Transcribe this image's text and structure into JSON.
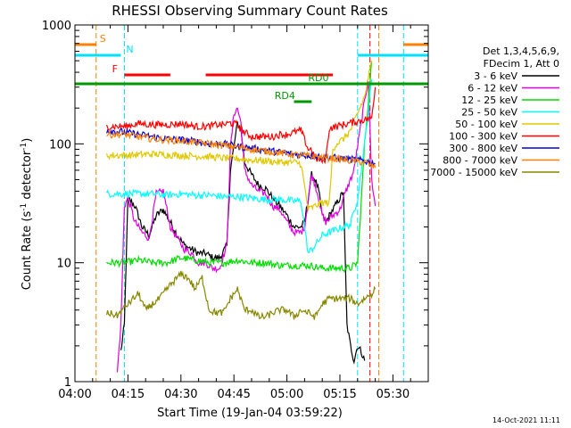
{
  "chart_data": {
    "type": "line",
    "title": "RHESSI Observing Summary Count Rates",
    "xlabel": "Start Time (19-Jan-04 03:59:22)",
    "ylabel_main": "Count Rate (s",
    "ylabel_sup1": "-1",
    "ylabel_mid": " detector",
    "ylabel_sup2": "-1",
    "ylabel_end": ")",
    "yscale": "log",
    "ylim": [
      1,
      1000
    ],
    "xlim_minutes": [
      0,
      100
    ],
    "x_ticks": [
      {
        "label": "04:00",
        "min": 0
      },
      {
        "label": "04:15",
        "min": 15
      },
      {
        "label": "04:30",
        "min": 30
      },
      {
        "label": "04:45",
        "min": 45
      },
      {
        "label": "05:00",
        "min": 60
      },
      {
        "label": "05:15",
        "min": 75
      },
      {
        "label": "05:30",
        "min": 90
      }
    ],
    "y_ticks": [
      {
        "label": "1",
        "v": 1
      },
      {
        "label": "10",
        "v": 10
      },
      {
        "label": "100",
        "v": 100
      },
      {
        "label": "1000",
        "v": 1000
      }
    ],
    "legend_header": [
      "Det 1,3,4,5,6,9,",
      "FDecim 1, Att 0"
    ],
    "series": [
      {
        "name": "3 - 6 keV",
        "color": "#000000",
        "points": [
          [
            13,
            1.8
          ],
          [
            14,
            3
          ],
          [
            15,
            35
          ],
          [
            17,
            30
          ],
          [
            19,
            20
          ],
          [
            21,
            17
          ],
          [
            23,
            25
          ],
          [
            25,
            28
          ],
          [
            27,
            22
          ],
          [
            29,
            17
          ],
          [
            31,
            14
          ],
          [
            33,
            13
          ],
          [
            35,
            12
          ],
          [
            37,
            12
          ],
          [
            39,
            11
          ],
          [
            41,
            11
          ],
          [
            43,
            14
          ],
          [
            44,
            60
          ],
          [
            46,
            150
          ],
          [
            47,
            130
          ],
          [
            48,
            70
          ],
          [
            50,
            55
          ],
          [
            52,
            45
          ],
          [
            54,
            42
          ],
          [
            56,
            35
          ],
          [
            58,
            30
          ],
          [
            60,
            25
          ],
          [
            62,
            20
          ],
          [
            64,
            20
          ],
          [
            65,
            22
          ],
          [
            67,
            55
          ],
          [
            68,
            50
          ],
          [
            69,
            40
          ],
          [
            70,
            25
          ],
          [
            71,
            22
          ],
          [
            73,
            28
          ],
          [
            75,
            35
          ],
          [
            76,
            40
          ],
          [
            77,
            3
          ],
          [
            78,
            2
          ],
          [
            79,
            1.5
          ],
          [
            80,
            2
          ],
          [
            81,
            1.8
          ],
          [
            82,
            1.5
          ]
        ]
      },
      {
        "name": "6 - 12 keV",
        "color": "#e000e0",
        "points": [
          [
            12,
            1.2
          ],
          [
            13,
            3
          ],
          [
            14,
            30
          ],
          [
            15,
            35
          ],
          [
            17,
            22
          ],
          [
            19,
            18
          ],
          [
            21,
            16
          ],
          [
            23,
            38
          ],
          [
            25,
            40
          ],
          [
            27,
            20
          ],
          [
            29,
            16
          ],
          [
            31,
            13
          ],
          [
            33,
            12
          ],
          [
            35,
            10
          ],
          [
            37,
            10
          ],
          [
            39,
            9
          ],
          [
            41,
            9
          ],
          [
            43,
            14
          ],
          [
            44,
            90
          ],
          [
            45,
            180
          ],
          [
            46,
            200
          ],
          [
            47,
            150
          ],
          [
            48,
            60
          ],
          [
            50,
            45
          ],
          [
            52,
            40
          ],
          [
            54,
            38
          ],
          [
            56,
            30
          ],
          [
            58,
            28
          ],
          [
            60,
            22
          ],
          [
            62,
            18
          ],
          [
            64,
            18
          ],
          [
            65,
            20
          ],
          [
            67,
            55
          ],
          [
            68,
            45
          ],
          [
            69,
            35
          ],
          [
            70,
            25
          ],
          [
            71,
            22
          ],
          [
            73,
            25
          ],
          [
            75,
            28
          ],
          [
            76,
            35
          ],
          [
            79,
            60
          ],
          [
            81,
            150
          ],
          [
            83,
            350
          ],
          [
            84,
            50
          ],
          [
            85,
            30
          ]
        ]
      },
      {
        "name": "12 - 25 keV",
        "color": "#00dd00",
        "points": [
          [
            9,
            10
          ],
          [
            14,
            10
          ],
          [
            18,
            10.5
          ],
          [
            22,
            10
          ],
          [
            26,
            10
          ],
          [
            30,
            11
          ],
          [
            34,
            10.5
          ],
          [
            38,
            10
          ],
          [
            42,
            10
          ],
          [
            46,
            10.5
          ],
          [
            50,
            10
          ],
          [
            54,
            10
          ],
          [
            58,
            9.5
          ],
          [
            62,
            9.5
          ],
          [
            66,
            9.5
          ],
          [
            70,
            9
          ],
          [
            74,
            9
          ],
          [
            78,
            9
          ],
          [
            80,
            10
          ],
          [
            82,
            100
          ],
          [
            84,
            500
          ]
        ]
      },
      {
        "name": "25 - 50 keV",
        "color": "#00ffff",
        "points": [
          [
            9,
            38
          ],
          [
            14,
            38
          ],
          [
            18,
            38
          ],
          [
            22,
            38
          ],
          [
            26,
            37
          ],
          [
            30,
            38
          ],
          [
            34,
            37
          ],
          [
            38,
            37
          ],
          [
            42,
            36
          ],
          [
            46,
            36
          ],
          [
            50,
            35
          ],
          [
            54,
            34
          ],
          [
            58,
            34
          ],
          [
            62,
            33
          ],
          [
            64,
            33
          ],
          [
            66,
            12
          ],
          [
            68,
            14
          ],
          [
            70,
            17
          ],
          [
            72,
            18
          ],
          [
            74,
            19
          ],
          [
            76,
            20
          ],
          [
            78,
            21
          ],
          [
            80,
            35
          ],
          [
            82,
            100
          ],
          [
            84,
            350
          ]
        ]
      },
      {
        "name": "50 - 100 keV",
        "color": "#e0c800",
        "points": [
          [
            9,
            80
          ],
          [
            14,
            80
          ],
          [
            18,
            81
          ],
          [
            22,
            82
          ],
          [
            26,
            81
          ],
          [
            30,
            80
          ],
          [
            34,
            79
          ],
          [
            38,
            78
          ],
          [
            42,
            76
          ],
          [
            46,
            75
          ],
          [
            50,
            73
          ],
          [
            54,
            72
          ],
          [
            58,
            70
          ],
          [
            62,
            70
          ],
          [
            64,
            68
          ],
          [
            66,
            28
          ],
          [
            68,
            30
          ],
          [
            70,
            32
          ],
          [
            72,
            32
          ],
          [
            73,
            90
          ],
          [
            74,
            100
          ],
          [
            76,
            110
          ],
          [
            78,
            130
          ],
          [
            80,
            180
          ],
          [
            82,
            250
          ],
          [
            84,
            500
          ]
        ]
      },
      {
        "name": "100 - 300 keV",
        "color": "#ff0000",
        "points": [
          [
            9,
            140
          ],
          [
            14,
            140
          ],
          [
            18,
            148
          ],
          [
            22,
            145
          ],
          [
            26,
            145
          ],
          [
            30,
            148
          ],
          [
            34,
            140
          ],
          [
            38,
            140
          ],
          [
            40,
            145
          ],
          [
            42,
            145
          ],
          [
            44,
            150
          ],
          [
            46,
            145
          ],
          [
            48,
            125
          ],
          [
            50,
            115
          ],
          [
            52,
            115
          ],
          [
            54,
            115
          ],
          [
            56,
            115
          ],
          [
            58,
            120
          ],
          [
            60,
            120
          ],
          [
            62,
            125
          ],
          [
            64,
            130
          ],
          [
            66,
            90
          ],
          [
            67,
            90
          ],
          [
            68,
            75
          ],
          [
            70,
            72
          ],
          [
            71,
            75
          ],
          [
            72,
            135
          ],
          [
            74,
            140
          ],
          [
            76,
            145
          ],
          [
            78,
            150
          ],
          [
            80,
            155
          ],
          [
            82,
            160
          ],
          [
            84,
            165
          ],
          [
            85,
            300
          ]
        ]
      },
      {
        "name": "300 - 800 keV",
        "color": "#0000dd",
        "points": [
          [
            9,
            130
          ],
          [
            14,
            125
          ],
          [
            18,
            120
          ],
          [
            22,
            115
          ],
          [
            26,
            110
          ],
          [
            30,
            108
          ],
          [
            34,
            105
          ],
          [
            38,
            100
          ],
          [
            42,
            100
          ],
          [
            46,
            95
          ],
          [
            50,
            92
          ],
          [
            54,
            88
          ],
          [
            58,
            85
          ],
          [
            62,
            82
          ],
          [
            66,
            80
          ],
          [
            70,
            78
          ],
          [
            74,
            76
          ],
          [
            78,
            74
          ],
          [
            82,
            72
          ],
          [
            85,
            68
          ]
        ]
      },
      {
        "name": "800 - 7000 keV",
        "color": "#ff8000",
        "points": [
          [
            9,
            120
          ],
          [
            14,
            120
          ],
          [
            18,
            115
          ],
          [
            22,
            110
          ],
          [
            26,
            108
          ],
          [
            30,
            106
          ],
          [
            34,
            103
          ],
          [
            38,
            100
          ],
          [
            42,
            97
          ],
          [
            46,
            94
          ],
          [
            50,
            90
          ],
          [
            54,
            87
          ],
          [
            58,
            84
          ],
          [
            62,
            81
          ],
          [
            66,
            79
          ],
          [
            70,
            77
          ],
          [
            74,
            75
          ],
          [
            78,
            72
          ],
          [
            82,
            70
          ],
          [
            85,
            63
          ]
        ]
      },
      {
        "name": "7000 - 15000 keV",
        "color": "#888800",
        "points": [
          [
            9,
            3.8
          ],
          [
            12,
            3.6
          ],
          [
            15,
            4.5
          ],
          [
            18,
            5.5
          ],
          [
            20,
            4
          ],
          [
            22,
            4.5
          ],
          [
            24,
            5
          ],
          [
            26,
            6
          ],
          [
            28,
            7
          ],
          [
            30,
            8
          ],
          [
            32,
            7.5
          ],
          [
            34,
            6
          ],
          [
            36,
            7.5
          ],
          [
            38,
            4
          ],
          [
            40,
            3.8
          ],
          [
            42,
            3.8
          ],
          [
            44,
            5
          ],
          [
            46,
            6
          ],
          [
            48,
            4
          ],
          [
            50,
            4
          ],
          [
            52,
            3.5
          ],
          [
            54,
            3.5
          ],
          [
            56,
            3.8
          ],
          [
            58,
            4
          ],
          [
            60,
            4
          ],
          [
            62,
            3.5
          ],
          [
            64,
            4
          ],
          [
            66,
            3.8
          ],
          [
            68,
            3.5
          ],
          [
            70,
            4.5
          ],
          [
            72,
            5
          ],
          [
            74,
            5
          ],
          [
            76,
            5
          ],
          [
            78,
            5
          ],
          [
            80,
            4.5
          ],
          [
            82,
            5
          ],
          [
            84,
            5.5
          ],
          [
            85,
            6
          ]
        ]
      }
    ],
    "flags": [
      {
        "label": "S",
        "color": "#ff8000",
        "y_rel": 0.055,
        "segments": [
          [
            0,
            6
          ]
        ],
        "label_at_min": 7
      },
      {
        "label": "N",
        "color": "#00e0ff",
        "y_rel": 0.085,
        "segments": [
          [
            0,
            13
          ]
        ],
        "label_at_min": 14.5
      },
      {
        "label": "F",
        "color": "#ff0000",
        "y_rel": 0.14,
        "segments": [
          [
            14,
            27
          ],
          [
            37,
            73
          ]
        ],
        "label_at_min": 10.5
      },
      {
        "label": "RD0",
        "color": "#009900",
        "y_rel": 0.165,
        "segments": [
          [
            0,
            100
          ]
        ],
        "label_at_min": 66
      },
      {
        "label": "RD4",
        "color": "#009900",
        "y_rel": 0.215,
        "segments": [
          [
            62,
            67
          ]
        ],
        "label_at_min": 56.5
      }
    ],
    "vertical_markers": [
      {
        "min": 6,
        "color": "#ff8000"
      },
      {
        "min": 14,
        "color": "#00e0ff"
      },
      {
        "min": 80,
        "color": "#00e0ff"
      },
      {
        "min": 83.5,
        "color": "#ff0000"
      },
      {
        "min": 86,
        "color": "#ff8000"
      },
      {
        "min": 93,
        "color": "#00e0ff"
      }
    ],
    "right_flag_segments": [
      {
        "color": "#00e0ff",
        "flag": "N",
        "segments": [
          [
            80,
            100
          ]
        ]
      },
      {
        "color": "#ff8000",
        "flag": "S",
        "segments": [
          [
            93,
            100
          ]
        ]
      }
    ],
    "grid": false,
    "legend_position": "right"
  },
  "timestamp": "14-Oct-2021 11:11"
}
